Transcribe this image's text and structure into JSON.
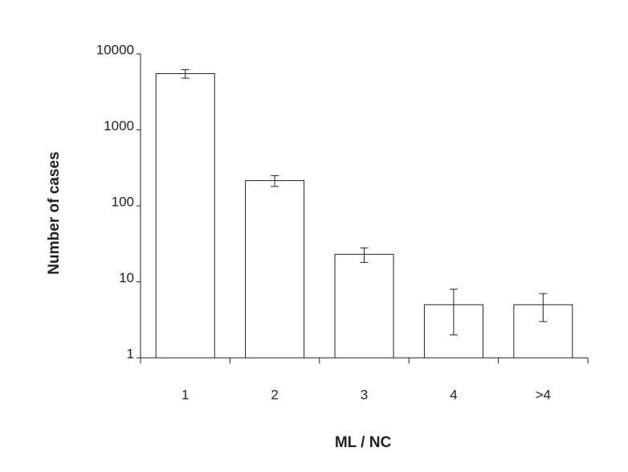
{
  "chart_data": {
    "type": "bar",
    "x_label": "ML / NC",
    "y_label": "Number of cases",
    "categories": [
      "1",
      "2",
      "3",
      "4",
      ">4"
    ],
    "values": [
      5500,
      215,
      23,
      5,
      5
    ],
    "errors": [
      700,
      35,
      5,
      3,
      2
    ],
    "color": "#ffffff",
    "edge_color": "#222222",
    "ylim": [
      1,
      10000
    ],
    "yticks": [
      1,
      10,
      100,
      1000,
      10000
    ],
    "log_scale": true
  }
}
